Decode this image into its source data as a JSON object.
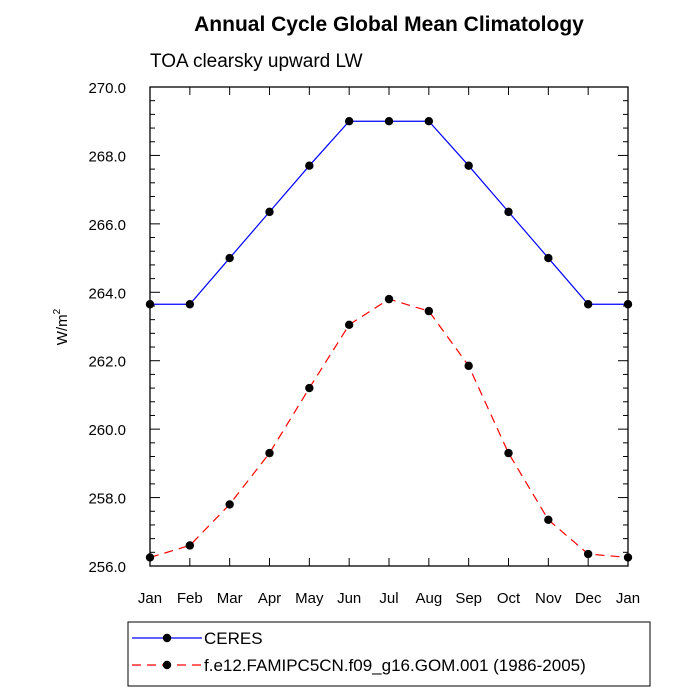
{
  "chart_data": {
    "type": "line",
    "title": "Annual Cycle Global Mean Climatology",
    "subtitle": "TOA clearsky upward LW",
    "xlabel": "",
    "ylabel": "W/m",
    "ylabel_superscript": "2",
    "categories": [
      "Jan",
      "Feb",
      "Mar",
      "Apr",
      "May",
      "Jun",
      "Jul",
      "Aug",
      "Sep",
      "Oct",
      "Nov",
      "Dec",
      "Jan"
    ],
    "ylim": [
      256.0,
      270.0
    ],
    "yticks": [
      "256.0",
      "258.0",
      "260.0",
      "262.0",
      "264.0",
      "266.0",
      "268.0",
      "270.0"
    ],
    "series": [
      {
        "name": "CERES",
        "color": "#0000ff",
        "dash": "solid",
        "values": [
          263.65,
          263.65,
          265.0,
          266.35,
          267.7,
          269.0,
          269.0,
          269.0,
          267.7,
          266.35,
          265.0,
          263.65,
          263.65
        ]
      },
      {
        "name": "f.e12.FAMIPC5CN.f09_g16.GOM.001 (1986-2005)",
        "color": "#ff0000",
        "dash": "dashed",
        "values": [
          256.25,
          256.6,
          257.8,
          259.3,
          261.2,
          263.05,
          263.8,
          263.45,
          261.85,
          259.3,
          257.35,
          256.35,
          256.25
        ]
      }
    ],
    "legend_position": "bottom",
    "grid": false
  }
}
